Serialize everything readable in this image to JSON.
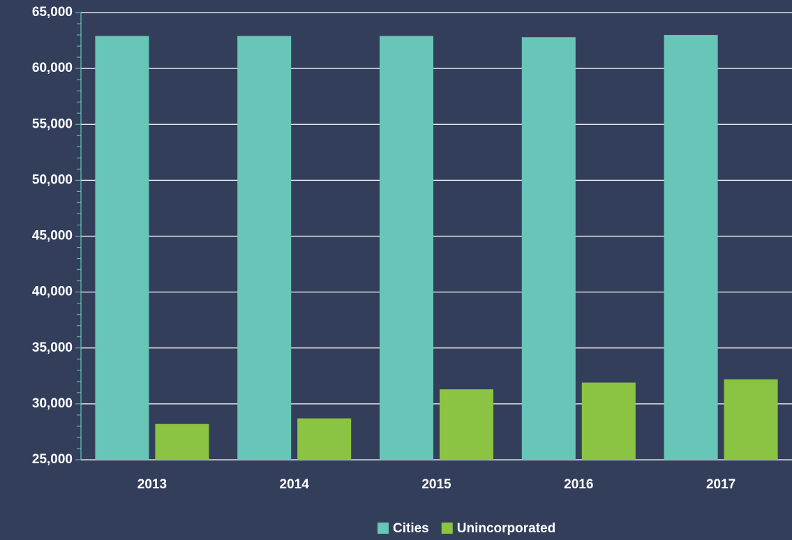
{
  "chart_data": {
    "type": "bar",
    "categories": [
      "2013",
      "2014",
      "2015",
      "2016",
      "2017"
    ],
    "series": [
      {
        "name": "Cities",
        "color": "#68c6b8",
        "values": [
          62900,
          62900,
          62900,
          62800,
          63000
        ]
      },
      {
        "name": "Unincorporated",
        "color": "#8bc443",
        "values": [
          28200,
          28700,
          31300,
          31900,
          32200
        ]
      }
    ],
    "ylim": [
      25000,
      65000
    ],
    "yticks": [
      {
        "value": 25000,
        "label": "25,000"
      },
      {
        "value": 30000,
        "label": "30,000"
      },
      {
        "value": 35000,
        "label": "35,000"
      },
      {
        "value": 40000,
        "label": "40,000"
      },
      {
        "value": 45000,
        "label": "45,000"
      },
      {
        "value": 50000,
        "label": "50,000"
      },
      {
        "value": 55000,
        "label": "55,000"
      },
      {
        "value": 60000,
        "label": "60,000"
      },
      {
        "value": 65000,
        "label": "65,000"
      }
    ],
    "grid": true,
    "legend": "bottom"
  }
}
